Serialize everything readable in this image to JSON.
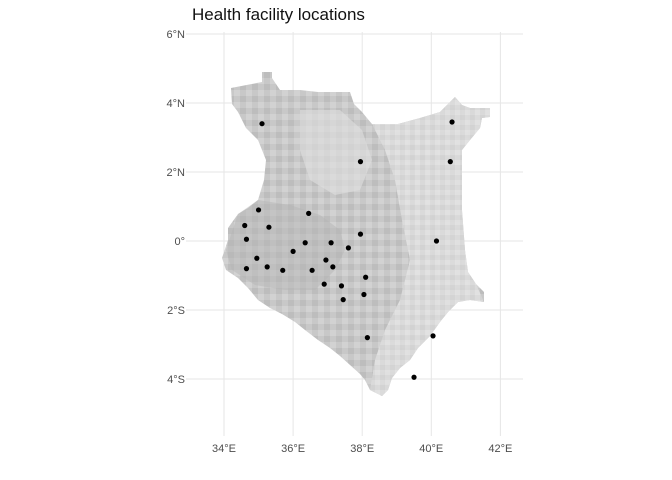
{
  "title": "Health facility locations",
  "chart_data": {
    "type": "scatter",
    "title": "Health facility locations",
    "xlabel": "",
    "ylabel": "",
    "xlim": [
      33.0,
      42.6
    ],
    "ylim": [
      -5.6,
      6.2
    ],
    "x_ticks": [
      34,
      36,
      38,
      40,
      42
    ],
    "x_tick_labels": [
      "34°E",
      "36°E",
      "38°E",
      "40°E",
      "42°E"
    ],
    "y_ticks": [
      6,
      4,
      2,
      0,
      -2,
      -4
    ],
    "y_tick_labels": [
      "6°N",
      "4°N",
      "2°N",
      "0°",
      "2°S",
      "4°S"
    ],
    "grid": true,
    "background_raster": "grayscale elevation-style map of Kenya",
    "marker_color": "#000000",
    "points": [
      {
        "lon": 35.1,
        "lat": 3.4
      },
      {
        "lon": 40.6,
        "lat": 3.45
      },
      {
        "lon": 37.95,
        "lat": 2.3
      },
      {
        "lon": 40.55,
        "lat": 2.3
      },
      {
        "lon": 35.0,
        "lat": 0.9
      },
      {
        "lon": 36.45,
        "lat": 0.8
      },
      {
        "lon": 34.6,
        "lat": 0.45
      },
      {
        "lon": 35.3,
        "lat": 0.4
      },
      {
        "lon": 37.95,
        "lat": 0.2
      },
      {
        "lon": 34.65,
        "lat": 0.05
      },
      {
        "lon": 36.35,
        "lat": -0.05
      },
      {
        "lon": 37.1,
        "lat": -0.05
      },
      {
        "lon": 40.15,
        "lat": 0.0
      },
      {
        "lon": 37.6,
        "lat": -0.2
      },
      {
        "lon": 36.0,
        "lat": -0.3
      },
      {
        "lon": 34.95,
        "lat": -0.5
      },
      {
        "lon": 36.95,
        "lat": -0.55
      },
      {
        "lon": 37.15,
        "lat": -0.75
      },
      {
        "lon": 35.25,
        "lat": -0.75
      },
      {
        "lon": 34.65,
        "lat": -0.8
      },
      {
        "lon": 35.7,
        "lat": -0.85
      },
      {
        "lon": 36.55,
        "lat": -0.85
      },
      {
        "lon": 38.1,
        "lat": -1.05
      },
      {
        "lon": 36.9,
        "lat": -1.25
      },
      {
        "lon": 37.4,
        "lat": -1.3
      },
      {
        "lon": 38.05,
        "lat": -1.55
      },
      {
        "lon": 37.45,
        "lat": -1.7
      },
      {
        "lon": 40.05,
        "lat": -2.75
      },
      {
        "lon": 38.15,
        "lat": -2.8
      },
      {
        "lon": 39.5,
        "lat": -3.95
      }
    ]
  }
}
